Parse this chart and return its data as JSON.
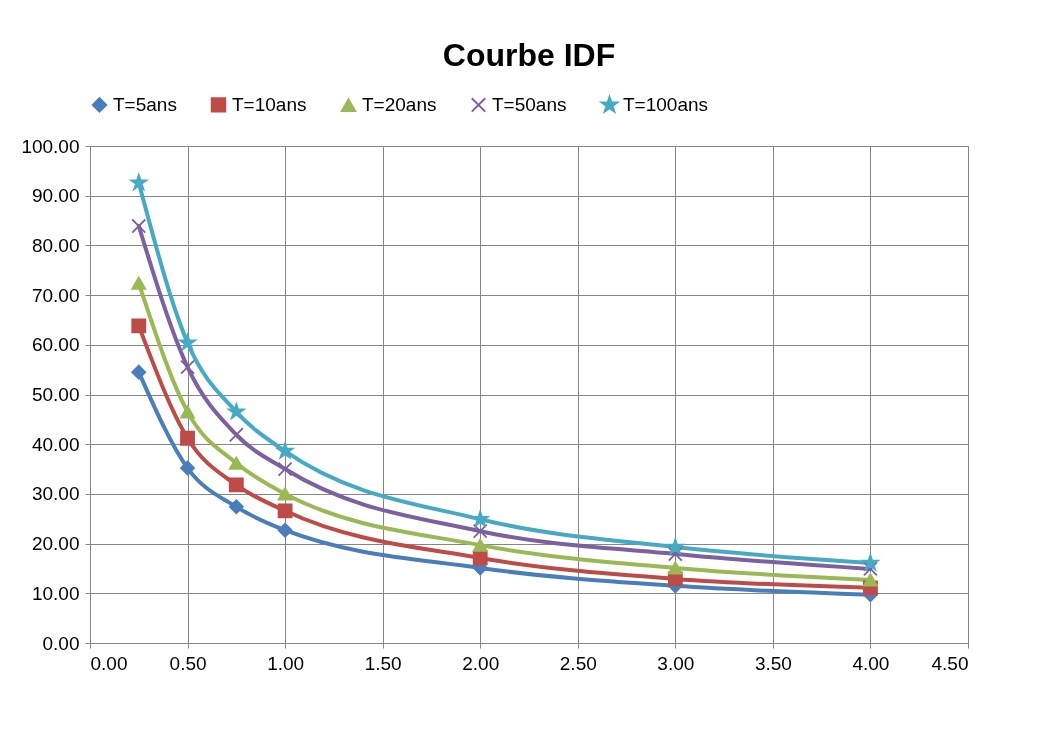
{
  "chart_data": {
    "type": "line",
    "title": "Courbe IDF",
    "x": [
      0.25,
      0.5,
      0.75,
      1,
      2,
      3,
      4
    ],
    "xlim": [
      0,
      4.5
    ],
    "xticks": [
      {
        "value": 0,
        "label": "0.00"
      },
      {
        "value": 0.5,
        "label": "0.50"
      },
      {
        "value": 1,
        "label": "1.00"
      },
      {
        "value": 1.5,
        "label": "1.50"
      },
      {
        "value": 2,
        "label": "2.00"
      },
      {
        "value": 2.5,
        "label": "2.50"
      },
      {
        "value": 3,
        "label": "3.00"
      },
      {
        "value": 3.5,
        "label": "3.50"
      },
      {
        "value": 4,
        "label": "4.00"
      },
      {
        "value": 4.5,
        "label": "4.50"
      }
    ],
    "ylim": [
      0,
      100
    ],
    "yticks": [
      {
        "value": 0,
        "label": "0.00"
      },
      {
        "value": 10,
        "label": "10.00"
      },
      {
        "value": 20,
        "label": "20.00"
      },
      {
        "value": 30,
        "label": "30.00"
      },
      {
        "value": 40,
        "label": "40.00"
      },
      {
        "value": 50,
        "label": "50.00"
      },
      {
        "value": 60,
        "label": "60.00"
      },
      {
        "value": 70,
        "label": "70.00"
      },
      {
        "value": 80,
        "label": "80.00"
      },
      {
        "value": 90,
        "label": "90.00"
      },
      {
        "value": 100,
        "label": "100.00"
      }
    ],
    "grid": true,
    "legend": "top",
    "line_style": "solid",
    "series": [
      {
        "name": "T=5ans",
        "color": "#4a7ebb",
        "marker": "diamond",
        "values": [
          54.5,
          35.2,
          27.4,
          22.7,
          15.1,
          11.5,
          9.7
        ]
      },
      {
        "name": "T=10ans",
        "color": "#be4b48",
        "marker": "square",
        "values": [
          63.8,
          41.2,
          31.8,
          26.6,
          17.1,
          12.9,
          11.1
        ]
      },
      {
        "name": "T=20ans",
        "color": "#98b954",
        "marker": "triangle",
        "values": [
          72.4,
          46.5,
          36.2,
          30.0,
          19.7,
          15.1,
          12.7
        ]
      },
      {
        "name": "T=50ans",
        "color": "#7d60a0",
        "marker": "cross",
        "values": [
          83.9,
          55.5,
          41.9,
          35.0,
          22.5,
          17.9,
          14.9
        ]
      },
      {
        "name": "T=100ans",
        "color": "#46aac5",
        "marker": "star",
        "values": [
          92.6,
          60.4,
          46.5,
          38.6,
          24.9,
          19.3,
          16.1
        ]
      }
    ]
  }
}
